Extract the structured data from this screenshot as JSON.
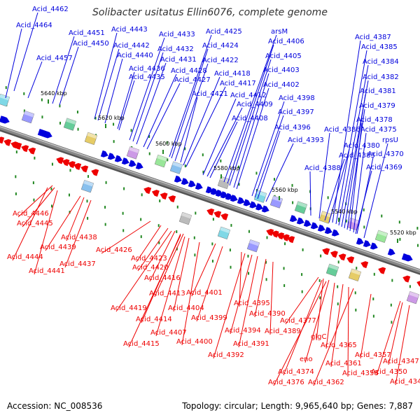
{
  "title": "Solibacter usitatus Ellin6076, complete genome",
  "accession_label": "Accession:",
  "accession": "NC_008536",
  "summary": {
    "topology_label": "Topology:",
    "topology": "circular;",
    "length_label": "Length:",
    "length": "9,965,640 bp;",
    "genes_label": "Genes:",
    "genes": "7,887"
  },
  "colors": {
    "forward_strand": "#0000dd",
    "reverse_strand": "#ee0000",
    "backbone": "#888888",
    "tick": "#228822"
  },
  "scale_labels": [
    "5640 kbp",
    "5620 kbp",
    "5600 kbp",
    "5580 kbp",
    "5560 kbp",
    "5540 kbp",
    "5520 kbp"
  ],
  "forward_genes": [
    "Acid_4462",
    "Acid_4464",
    "Acid_4451",
    "Acid_4450",
    "Acid_4457",
    "Acid_4443",
    "Acid_4442",
    "Acid_4440",
    "Acid_4436",
    "Acid_4435",
    "Acid_4433",
    "Acid_4432",
    "Acid_4431",
    "Acid_4428",
    "Acid_4427",
    "Acid_4425",
    "Acid_4424",
    "Acid_4422",
    "Acid_4418",
    "Acid_4417",
    "Acid_4421",
    "Acid_4412",
    "Acid_4409",
    "Acid_4408",
    "arsM",
    "Acid_4406",
    "Acid_4405",
    "Acid_4403",
    "Acid_4402",
    "Acid_4398",
    "Acid_4397",
    "Acid_4396",
    "Acid_4393",
    "Acid_4387",
    "Acid_4385",
    "Acid_4384",
    "Acid_4382",
    "Acid_4381",
    "Acid_4379",
    "Acid_4378",
    "Acid_4386",
    "Acid_4375",
    "Acid_4380",
    "rpsU",
    "Acid_4383",
    "Acid_4370",
    "Acid_4388",
    "Acid_4369"
  ],
  "reverse_genes": [
    "Acid_4446",
    "Acid_4445",
    "Acid_4438",
    "Acid_4439",
    "Acid_4444",
    "Acid_4437",
    "Acid_4441",
    "Acid_4426",
    "Acid_4423",
    "Acid_4420",
    "Acid_4416",
    "Acid_4413",
    "Acid_4401",
    "Acid_4419",
    "Acid_4404",
    "Acid_4414",
    "Acid_4399",
    "Acid_4395",
    "Acid_4407",
    "Acid_4400",
    "Acid_4415",
    "Acid_4390",
    "Acid_4394",
    "Acid_4389",
    "Acid_4391",
    "Acid_4392",
    "Acid_4377",
    "glgC",
    "Acid_4365",
    "eno",
    "Acid_4357",
    "Acid_4361",
    "Acid_4374",
    "Acid_4358",
    "Acid_4376",
    "Acid_4362",
    "Acid_4347",
    "Acid_4350",
    "Acid_4346"
  ]
}
